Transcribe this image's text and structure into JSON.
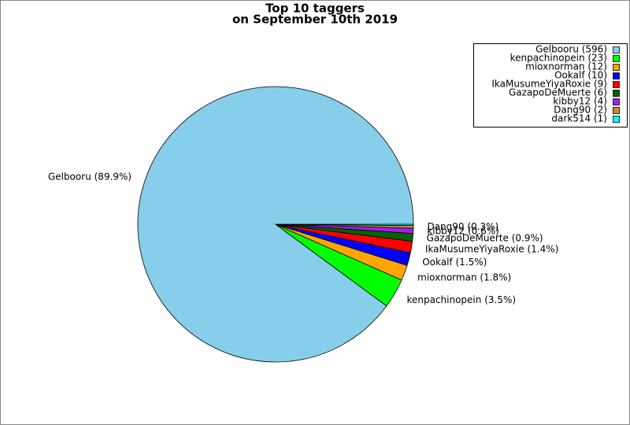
{
  "chart_data": {
    "type": "pie",
    "title": "Top 10 taggers",
    "subtitle": "on September 10th 2019",
    "categories": [
      "Gelbooru",
      "kenpachinopein",
      "mioxnorman",
      "Ookalf",
      "IkaMusumeYiyaRoxie",
      "GazapoDeMuerte",
      "kibby12",
      "Dang90",
      "dark514"
    ],
    "values": [
      596,
      23,
      12,
      10,
      9,
      6,
      4,
      2,
      1
    ],
    "legend_labels": [
      "Gelbooru (596)",
      "kenpachinopein (23)",
      "mioxnorman (12)",
      "Ookalf (10)",
      "IkaMusumeYiyaRoxie (9)",
      "GazapoDeMuerte (6)",
      "kibby12 (4)",
      "Dang90 (2)",
      "dark514 (1)"
    ],
    "value_labels": [
      "Gelbooru (89.9%)",
      "kenpachinopein (3.5%)",
      "mioxnorman (1.8%)",
      "Ookalf (1.5%)",
      "IkaMusumeYiyaRoxie (1.4%)",
      "GazapoDeMuerte (0.9%)",
      "kibby12 (0.6%)",
      "Dang90 (0.3%)",
      null
    ],
    "colors": [
      "#87ceeb",
      "#00ff00",
      "#ffa500",
      "#0000ff",
      "#ff0000",
      "#006400",
      "#a020f0",
      "#cd853f",
      "#00ffff"
    ],
    "legend": "upper right"
  }
}
